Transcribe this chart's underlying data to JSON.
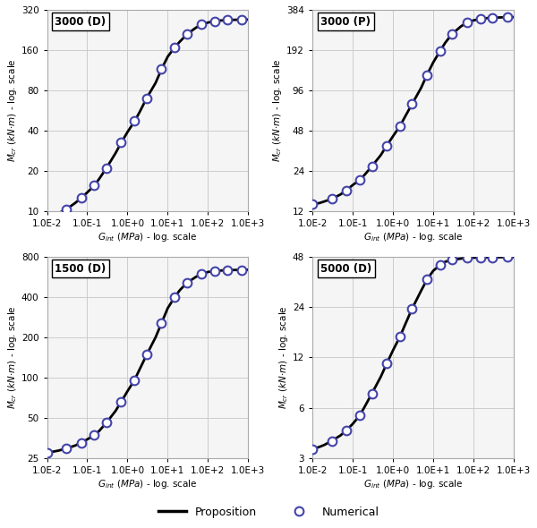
{
  "subplots": [
    {
      "title": "3000 (D)",
      "ylabel": "$M_{cr}$ $(kN{\\cdot}m)$ - log. scale",
      "xlabel": "$G_{int}$ $(MPa)$ - log. scale",
      "ylim": [
        10,
        320
      ],
      "yticks": [
        10,
        20,
        40,
        80,
        160,
        320
      ],
      "x_curve": [
        0.01,
        0.015,
        0.02,
        0.03,
        0.05,
        0.07,
        0.1,
        0.15,
        0.2,
        0.3,
        0.5,
        0.7,
        1.0,
        1.5,
        2.0,
        3.0,
        5.0,
        7.0,
        10.0,
        15.0,
        20.0,
        30.0,
        50.0,
        70.0,
        100.0,
        150.0,
        200.0,
        300.0,
        500.0,
        700.0,
        1000.0
      ],
      "y_curve": [
        9.0,
        9.3,
        9.7,
        10.3,
        11.5,
        12.5,
        13.8,
        15.5,
        17.5,
        21.0,
        27.0,
        32.5,
        39.0,
        47.0,
        55.0,
        70.0,
        91.0,
        115.0,
        143.0,
        168.0,
        185.0,
        210.0,
        235.0,
        248.0,
        257.0,
        263.0,
        266.0,
        268.0,
        269.5,
        270.0,
        270.5
      ],
      "x_markers": [
        0.01,
        0.03,
        0.07,
        0.15,
        0.3,
        0.7,
        1.5,
        3.0,
        7.0,
        15.0,
        30.0,
        70.0,
        150.0,
        300.0,
        700.0
      ],
      "y_markers": [
        9.0,
        10.3,
        12.5,
        15.5,
        21.0,
        32.5,
        47.0,
        70.0,
        115.0,
        168.0,
        210.0,
        248.0,
        263.0,
        268.0,
        270.0
      ]
    },
    {
      "title": "3000 (P)",
      "ylabel": "$M_{cr}$ $(kN{\\cdot}m)$ - log. scale",
      "xlabel": "$G_{int}$ $(MPa)$ - log. scale",
      "ylim": [
        12,
        384
      ],
      "yticks": [
        12,
        24,
        48,
        96,
        192,
        384
      ],
      "x_curve": [
        0.01,
        0.015,
        0.02,
        0.03,
        0.05,
        0.07,
        0.1,
        0.15,
        0.2,
        0.3,
        0.5,
        0.7,
        1.0,
        1.5,
        2.0,
        3.0,
        5.0,
        7.0,
        10.0,
        15.0,
        20.0,
        30.0,
        50.0,
        70.0,
        100.0,
        150.0,
        200.0,
        300.0,
        500.0,
        700.0,
        1000.0
      ],
      "y_curve": [
        13.5,
        13.8,
        14.2,
        14.8,
        16.0,
        17.2,
        18.8,
        20.5,
        22.5,
        26.0,
        31.5,
        37.0,
        43.5,
        52.0,
        61.0,
        76.0,
        100.0,
        125.0,
        155.0,
        190.0,
        218.0,
        255.0,
        290.0,
        308.0,
        320.0,
        328.0,
        332.0,
        335.0,
        337.0,
        338.0,
        338.5
      ],
      "x_markers": [
        0.01,
        0.03,
        0.07,
        0.15,
        0.3,
        0.7,
        1.5,
        3.0,
        7.0,
        15.0,
        30.0,
        70.0,
        150.0,
        300.0,
        700.0
      ],
      "y_markers": [
        13.5,
        14.8,
        17.2,
        20.5,
        26.0,
        37.0,
        52.0,
        76.0,
        125.0,
        190.0,
        255.0,
        308.0,
        328.0,
        335.0,
        338.0
      ]
    },
    {
      "title": "1500 (D)",
      "ylabel": "$M_{cr}$ $(kN{\\cdot}m)$ - log. scale",
      "xlabel": "$G_{int}$ $(MPa)$ - log. scale",
      "ylim": [
        25,
        800
      ],
      "yticks": [
        25,
        50,
        100,
        200,
        400,
        800
      ],
      "x_curve": [
        0.01,
        0.015,
        0.02,
        0.03,
        0.05,
        0.07,
        0.1,
        0.15,
        0.2,
        0.3,
        0.5,
        0.7,
        1.0,
        1.5,
        2.0,
        3.0,
        5.0,
        7.0,
        10.0,
        15.0,
        20.0,
        30.0,
        50.0,
        70.0,
        100.0,
        150.0,
        200.0,
        300.0,
        500.0,
        700.0,
        1000.0
      ],
      "y_curve": [
        27.5,
        28.0,
        28.5,
        29.5,
        31.0,
        32.5,
        34.5,
        37.0,
        40.0,
        46.0,
        56.0,
        66.0,
        79.0,
        96.0,
        115.0,
        148.0,
        200.0,
        255.0,
        330.0,
        400.0,
        450.0,
        510.0,
        565.0,
        595.0,
        615.0,
        625.0,
        630.0,
        635.0,
        637.0,
        638.0,
        639.0
      ],
      "x_markers": [
        0.01,
        0.03,
        0.07,
        0.15,
        0.3,
        0.7,
        1.5,
        3.0,
        7.0,
        15.0,
        30.0,
        70.0,
        150.0,
        300.0,
        700.0
      ],
      "y_markers": [
        27.5,
        29.5,
        32.5,
        37.0,
        46.0,
        66.0,
        96.0,
        148.0,
        255.0,
        400.0,
        510.0,
        595.0,
        625.0,
        635.0,
        638.0
      ]
    },
    {
      "title": "5000 (D)",
      "ylabel": "$M_{cr}$ $(kN{\\cdot}m)$ - log. scale",
      "xlabel": "$G_{int}$ $(MPa)$ - log. scale",
      "ylim": [
        3,
        48
      ],
      "yticks": [
        3,
        6,
        12,
        24,
        48
      ],
      "x_curve": [
        0.01,
        0.015,
        0.02,
        0.03,
        0.05,
        0.07,
        0.1,
        0.15,
        0.2,
        0.3,
        0.5,
        0.7,
        1.0,
        1.5,
        2.0,
        3.0,
        5.0,
        7.0,
        10.0,
        15.0,
        20.0,
        30.0,
        50.0,
        70.0,
        100.0,
        150.0,
        200.0,
        300.0,
        500.0,
        700.0,
        1000.0
      ],
      "y_curve": [
        3.4,
        3.5,
        3.6,
        3.8,
        4.1,
        4.4,
        4.8,
        5.4,
        6.1,
        7.3,
        9.2,
        11.0,
        13.2,
        16.0,
        18.8,
        23.5,
        30.0,
        35.0,
        39.5,
        43.0,
        44.8,
        46.0,
        46.8,
        47.2,
        47.4,
        47.5,
        47.6,
        47.6,
        47.7,
        47.7,
        47.7
      ],
      "x_markers": [
        0.01,
        0.03,
        0.07,
        0.15,
        0.3,
        0.7,
        1.5,
        3.0,
        7.0,
        15.0,
        30.0,
        70.0,
        150.0,
        300.0,
        700.0
      ],
      "y_markers": [
        3.4,
        3.8,
        4.4,
        5.4,
        7.3,
        11.0,
        16.0,
        23.5,
        35.0,
        43.0,
        46.0,
        47.2,
        47.5,
        47.6,
        47.7
      ]
    }
  ],
  "xlim": [
    0.01,
    1000.0
  ],
  "xticks": [
    0.01,
    0.1,
    1.0,
    10.0,
    100.0,
    1000.0
  ],
  "xticklabels": [
    "1.0E-2",
    "1.0E-1",
    "1.0E+0",
    "1.0E+1",
    "1.0E+2",
    "1.0E+3"
  ],
  "line_color": "#000000",
  "marker_edge_color": "#4444aa",
  "marker_face_color": "#ffffff",
  "bg_color": "#f5f5f5",
  "grid_color": "#cccccc",
  "legend_line_label": "Proposition",
  "legend_marker_label": "Numerical"
}
